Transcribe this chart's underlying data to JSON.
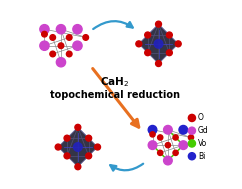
{
  "title_line1": "CaH",
  "title_sub": "2",
  "title_line2": "topochemical reduction",
  "title_fontsize": 7.5,
  "title_bold": true,
  "bg_color": "#ffffff",
  "legend": [
    {
      "label": "O",
      "color": "#cc0000"
    },
    {
      "label": "Gd",
      "color": "#cc44cc"
    },
    {
      "label": "Vo",
      "color": "#44cc00"
    },
    {
      "label": "Bi",
      "color": "#2222cc"
    }
  ],
  "arrow_blue_color": "#3399cc",
  "arrow_orange_color": "#e87020",
  "fig_width": 2.42,
  "fig_height": 1.89,
  "dpi": 100
}
